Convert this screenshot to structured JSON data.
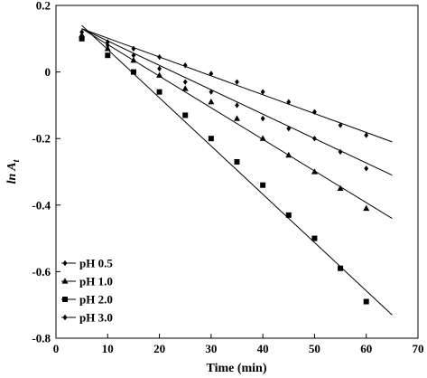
{
  "chart_data": {
    "type": "scatter",
    "xlabel": "Time (min)",
    "ylabel_main": "ln A",
    "ylabel_sub": "t",
    "xlim": [
      0,
      70
    ],
    "ylim": [
      -0.8,
      0.2
    ],
    "x_ticks": [
      0,
      10,
      20,
      30,
      40,
      50,
      60,
      70
    ],
    "y_ticks": [
      0.2,
      0,
      -0.2,
      -0.4,
      -0.6,
      -0.8
    ],
    "x_tick_labels": [
      "0",
      "10",
      "20",
      "30",
      "40",
      "50",
      "60",
      "70"
    ],
    "y_tick_labels": [
      "0.2",
      "0",
      "-0.2",
      "-0.4",
      "-0.6",
      "-0.8"
    ],
    "grid": false,
    "legend_position": "bottom-left",
    "series": [
      {
        "name": "pH 0.5",
        "marker": "diamond",
        "x": [
          5,
          10,
          15,
          20,
          25,
          30,
          35,
          40,
          45,
          50,
          55,
          60
        ],
        "y": [
          0.11,
          0.09,
          0.07,
          0.045,
          0.02,
          -0.005,
          -0.03,
          -0.06,
          -0.09,
          -0.12,
          -0.16,
          -0.19
        ],
        "fit": {
          "x": [
            5,
            65
          ],
          "y": [
            0.13,
            -0.21
          ]
        }
      },
      {
        "name": "pH 1.0",
        "marker": "triangle",
        "x": [
          5,
          10,
          15,
          20,
          25,
          30,
          35,
          40,
          45,
          50,
          55,
          60
        ],
        "y": [
          0.11,
          0.07,
          0.035,
          -0.01,
          -0.05,
          -0.09,
          -0.14,
          -0.2,
          -0.25,
          -0.3,
          -0.35,
          -0.41
        ],
        "fit": {
          "x": [
            5,
            65
          ],
          "y": [
            0.13,
            -0.44
          ]
        }
      },
      {
        "name": "pH 2.0",
        "marker": "square",
        "x": [
          5,
          10,
          15,
          20,
          25,
          30,
          35,
          40,
          45,
          50,
          55,
          60
        ],
        "y": [
          0.1,
          0.05,
          0.0,
          -0.06,
          -0.13,
          -0.2,
          -0.27,
          -0.34,
          -0.43,
          -0.5,
          -0.59,
          -0.69
        ],
        "fit": {
          "x": [
            5,
            65
          ],
          "y": [
            0.14,
            -0.73
          ]
        }
      },
      {
        "name": "pH 3.0",
        "marker": "diamond",
        "x": [
          5,
          10,
          15,
          20,
          25,
          30,
          35,
          40,
          45,
          50,
          55,
          60
        ],
        "y": [
          0.12,
          0.08,
          0.05,
          0.01,
          -0.03,
          -0.06,
          -0.1,
          -0.14,
          -0.17,
          -0.2,
          -0.24,
          -0.29
        ],
        "fit": {
          "x": [
            5,
            65
          ],
          "y": [
            0.13,
            -0.31
          ]
        }
      }
    ],
    "colors": {
      "ink": "#000000",
      "background": "#ffffff"
    }
  }
}
